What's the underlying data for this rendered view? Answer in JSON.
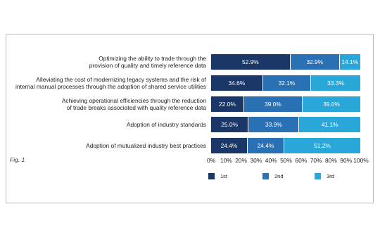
{
  "chart_data": {
    "type": "stacked-barh",
    "categories": [
      "Optimizing the ability to trade through the\nprovision of quality and timely reference data",
      "Alleviating the cost of modernizing legacy systems and the risk of\ninternal manual processes through the adoption of shared service utilities",
      "Achieving operational efficiencies through the reduction\nof trade breaks associated with quality reference data",
      "Adoption of industry standards",
      "Adoption of mutualized industry best practices"
    ],
    "series": [
      {
        "name": "1st",
        "color": "#1a3767",
        "values": [
          52.9,
          34.6,
          22.0,
          25.0,
          24.4
        ],
        "value_labels": [
          "52.9%",
          "34.6%",
          "22.0%",
          "25.0%",
          "24.4%"
        ]
      },
      {
        "name": "2nd",
        "color": "#2a70b5",
        "values": [
          32.9,
          32.1,
          39.0,
          33.9,
          24.4
        ],
        "value_labels": [
          "32.9%",
          "32.1%",
          "39.0%",
          "33.9%",
          "24.4%"
        ]
      },
      {
        "name": "3rd",
        "color": "#29a7d9",
        "values": [
          14.1,
          33.3,
          39.0,
          41.1,
          51.2
        ],
        "value_labels": [
          "14.1%",
          "33.3%",
          "39.0%",
          "41.1%",
          "51.2%"
        ]
      }
    ],
    "xlim": [
      0,
      100
    ],
    "xticks": [
      {
        "value": 0,
        "label": "0%"
      },
      {
        "value": 10,
        "label": "10%"
      },
      {
        "value": 20,
        "label": "20%"
      },
      {
        "value": 30,
        "label": "30%"
      },
      {
        "value": 40,
        "label": "40%"
      },
      {
        "value": 50,
        "label": "50%"
      },
      {
        "value": 60,
        "label": "60%"
      },
      {
        "value": 70,
        "label": "70%"
      },
      {
        "value": 80,
        "label": "80%"
      },
      {
        "value": 90,
        "label": "90%"
      },
      {
        "value": 100,
        "label": "100%"
      }
    ],
    "figure_label": "Fig. 1"
  }
}
